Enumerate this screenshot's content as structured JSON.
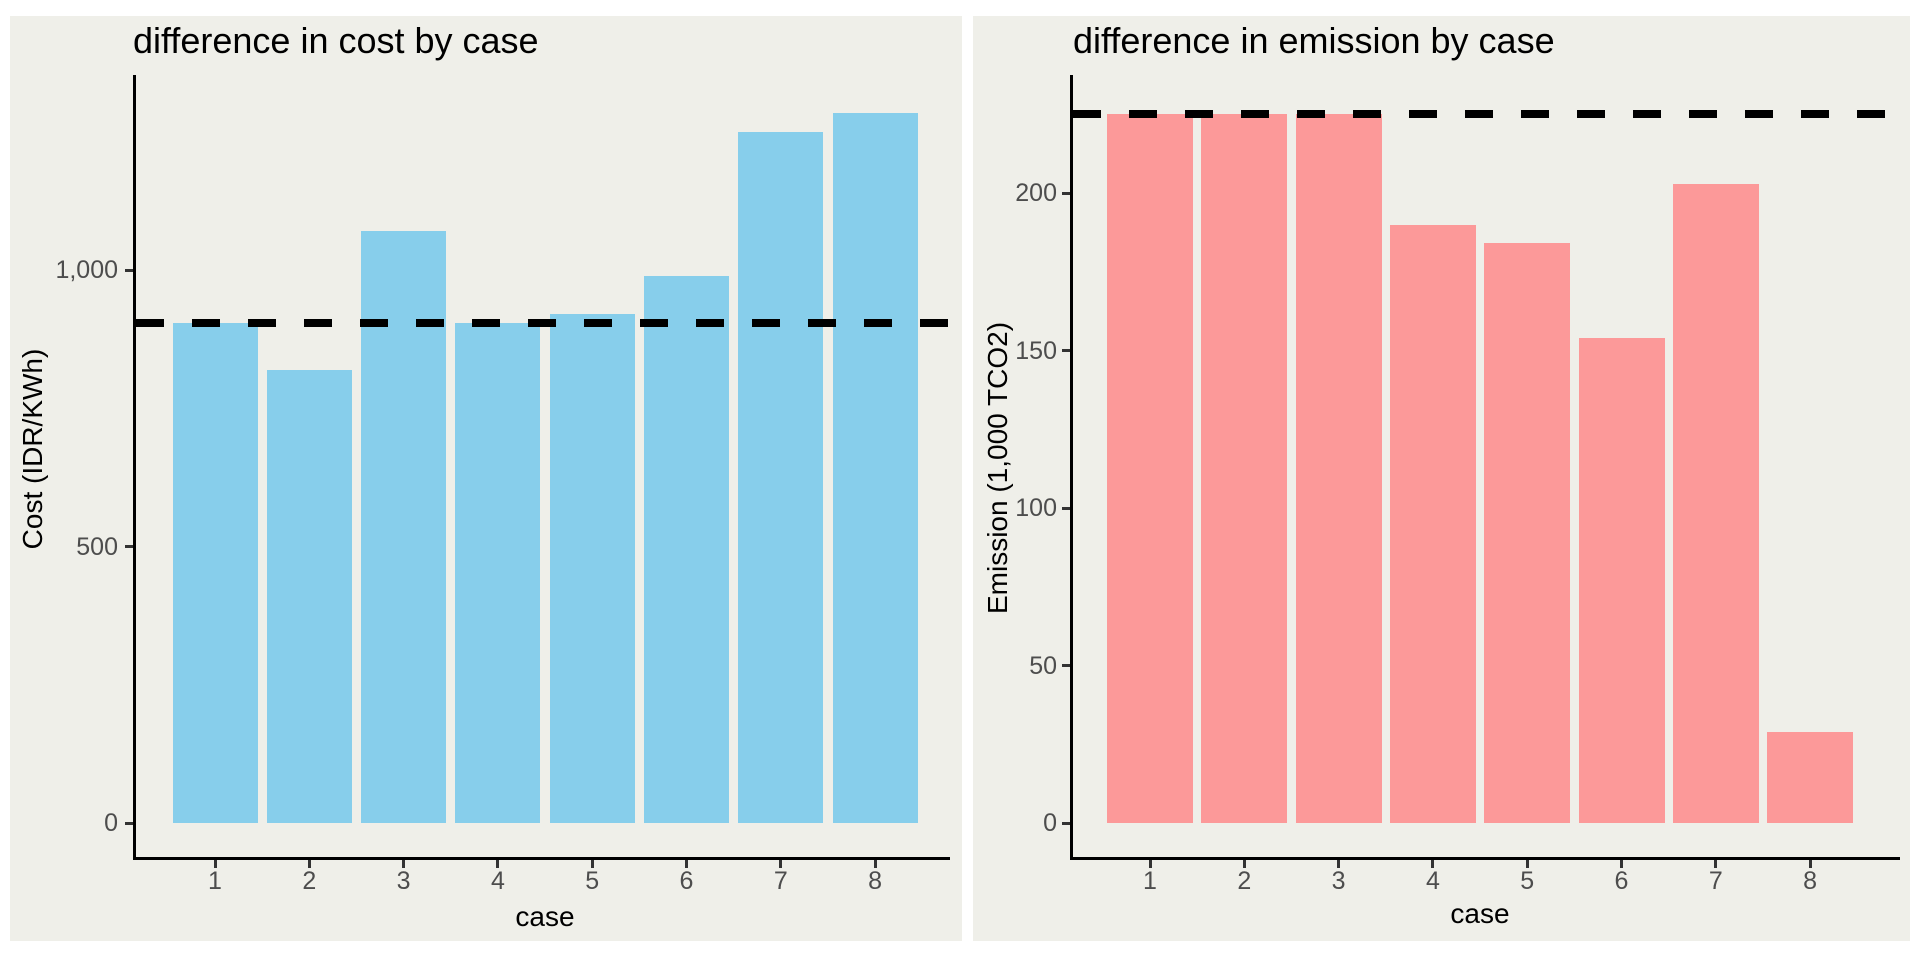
{
  "figure": {
    "kind": "two-panel bar chart figure"
  },
  "colors": {
    "page_background": "#FFFFFF",
    "panel_background": "#EFEFE9",
    "axis_line": "#000000",
    "tick_label": "#4D4D4D",
    "title_text": "#000000"
  },
  "chart_data": [
    {
      "type": "bar",
      "title": "difference in cost by case",
      "xlabel": "case",
      "ylabel": "Cost (IDR/KWh)",
      "categories": [
        "1",
        "2",
        "3",
        "4",
        "5",
        "6",
        "7",
        "8"
      ],
      "values": [
        905,
        820,
        1070,
        905,
        920,
        990,
        1250,
        1285
      ],
      "yticks": [
        0,
        500,
        1000
      ],
      "ytick_labels": [
        "0",
        "500",
        "1,000"
      ],
      "ylim": [
        0,
        1353
      ],
      "hline": 905,
      "hline_style": "dashed",
      "hline_color": "#000000",
      "bar_color": "#87CEEB",
      "grid": "off",
      "legend": "none"
    },
    {
      "type": "bar",
      "title": "difference in emission by case",
      "xlabel": "case",
      "ylabel": "Emission (1,000 TCO2)",
      "categories": [
        "1",
        "2",
        "3",
        "4",
        "5",
        "6",
        "7",
        "8"
      ],
      "values": [
        225,
        225,
        225,
        190,
        184,
        154,
        203,
        29
      ],
      "yticks": [
        0,
        50,
        100,
        150,
        200
      ],
      "ytick_labels": [
        "0",
        "50",
        "100",
        "150",
        "200"
      ],
      "ylim": [
        0,
        237.5
      ],
      "hline": 225,
      "hline_style": "dashed",
      "hline_color": "#000000",
      "bar_color": "#FC9999",
      "grid": "off",
      "legend": "none"
    }
  ]
}
